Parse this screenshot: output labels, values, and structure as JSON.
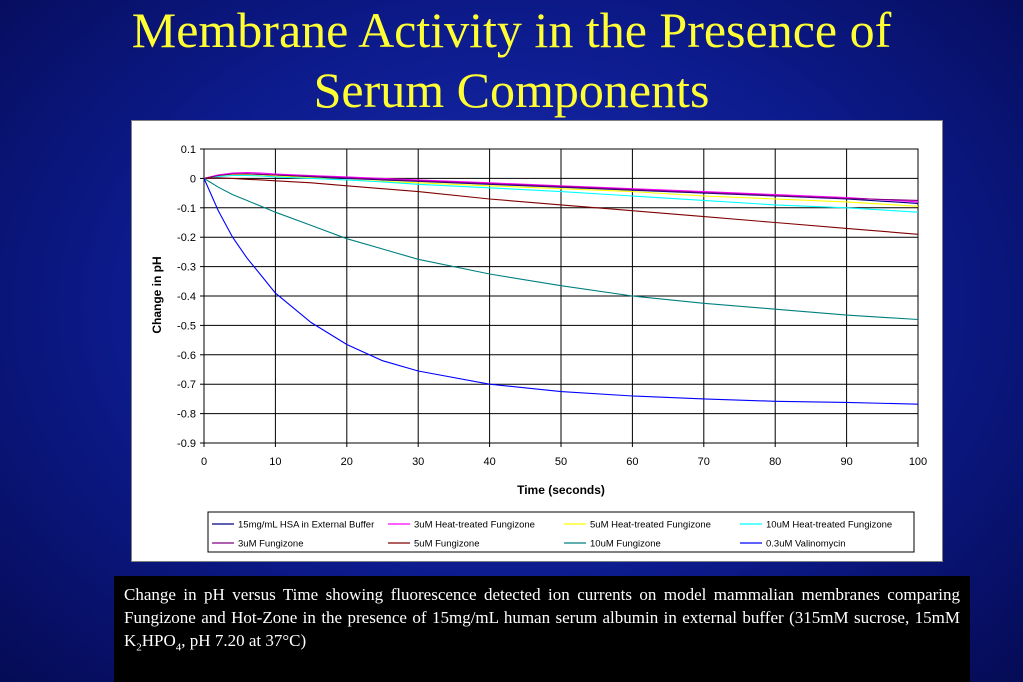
{
  "slide": {
    "title_line1": "Membrane Activity in the Presence of",
    "title_line2": "Serum Components"
  },
  "caption": {
    "part1": "Change in pH versus Time showing fluorescence detected ion currents on model mammalian membranes comparing Fungizone and Hot-Zone in the presence of 15mg/mL human serum albumin in external buffer (315mM sucrose, 15mM K",
    "sub1": "2",
    "part2": "HPO",
    "sub2": "4",
    "part3": ", pH 7.20 at 37°C)"
  },
  "chart_data": {
    "type": "line",
    "xlabel": "Time (seconds)",
    "ylabel": "Change in pH",
    "xlim": [
      0,
      100
    ],
    "ylim": [
      -0.9,
      0.1
    ],
    "xticks": [
      0,
      10,
      20,
      30,
      40,
      50,
      60,
      70,
      80,
      90,
      100
    ],
    "yticks": [
      "0.1",
      "0",
      "-0.1",
      "-0.2",
      "-0.3",
      "-0.4",
      "-0.5",
      "-0.6",
      "-0.7",
      "-0.8",
      "-0.9"
    ],
    "grid": "horizontal and vertical",
    "legend_position": "bottom",
    "x": [
      0,
      2,
      4,
      6,
      8,
      10,
      15,
      20,
      25,
      30,
      40,
      50,
      60,
      70,
      80,
      90,
      100
    ],
    "series": [
      {
        "name": "15mg/mL HSA in External Buffer",
        "color": "#000080",
        "values": [
          0,
          0.01,
          0.015,
          0.015,
          0.013,
          0.01,
          0.005,
          0,
          -0.005,
          -0.01,
          -0.02,
          -0.03,
          -0.04,
          -0.05,
          -0.06,
          -0.07,
          -0.085
        ]
      },
      {
        "name": "3uM Heat-treated Fungizone",
        "color": "#ff00ff",
        "values": [
          0,
          0.012,
          0.018,
          0.02,
          0.018,
          0.015,
          0.01,
          0.005,
          0,
          -0.005,
          -0.015,
          -0.025,
          -0.035,
          -0.045,
          -0.055,
          -0.065,
          -0.08
        ]
      },
      {
        "name": "5uM Heat-treated Fungizone",
        "color": "#ffff00",
        "values": [
          0,
          0.008,
          0.012,
          0.012,
          0.01,
          0.008,
          0.002,
          -0.005,
          -0.01,
          -0.015,
          -0.025,
          -0.035,
          -0.045,
          -0.06,
          -0.07,
          -0.08,
          -0.095
        ]
      },
      {
        "name": "10uM Heat-treated Fungizone",
        "color": "#00ffff",
        "values": [
          0,
          0.006,
          0.01,
          0.01,
          0.008,
          0.005,
          0,
          -0.005,
          -0.012,
          -0.02,
          -0.032,
          -0.045,
          -0.06,
          -0.075,
          -0.09,
          -0.1,
          -0.115
        ]
      },
      {
        "name": "3uM Fungizone",
        "color": "#800080",
        "values": [
          0,
          0.01,
          0.015,
          0.016,
          0.014,
          0.012,
          0.007,
          0.002,
          -0.003,
          -0.008,
          -0.018,
          -0.028,
          -0.038,
          -0.048,
          -0.058,
          -0.068,
          -0.075
        ]
      },
      {
        "name": "5uM Fungizone",
        "color": "#800000",
        "values": [
          0,
          0.002,
          0,
          -0.003,
          -0.005,
          -0.008,
          -0.015,
          -0.025,
          -0.035,
          -0.045,
          -0.07,
          -0.09,
          -0.11,
          -0.13,
          -0.15,
          -0.17,
          -0.19
        ]
      },
      {
        "name": "10uM Fungizone",
        "color": "#008080",
        "values": [
          0,
          -0.03,
          -0.055,
          -0.075,
          -0.095,
          -0.115,
          -0.16,
          -0.205,
          -0.24,
          -0.275,
          -0.325,
          -0.365,
          -0.4,
          -0.425,
          -0.445,
          -0.465,
          -0.48
        ]
      },
      {
        "name": "0.3uM Valinomycin",
        "color": "#0000ff",
        "values": [
          0,
          -0.11,
          -0.2,
          -0.27,
          -0.33,
          -0.39,
          -0.49,
          -0.565,
          -0.62,
          -0.655,
          -0.7,
          -0.725,
          -0.74,
          -0.75,
          -0.758,
          -0.762,
          -0.768
        ]
      }
    ]
  }
}
